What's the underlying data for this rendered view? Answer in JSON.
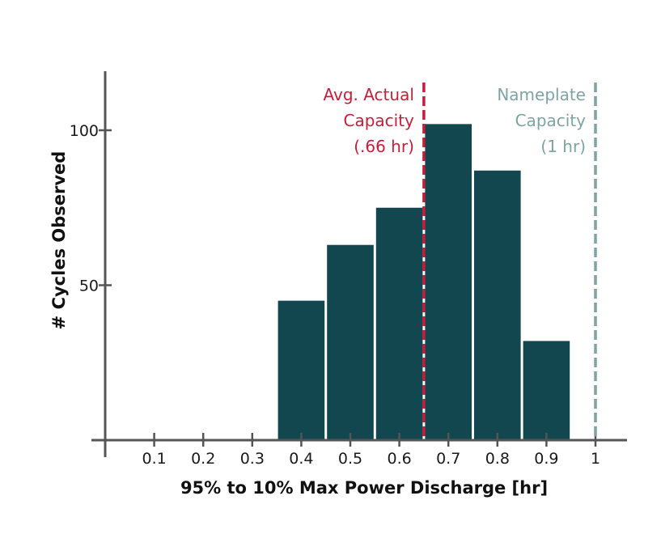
{
  "chart_data": {
    "type": "bar",
    "title": "",
    "xlabel": "95% to 10% Max Power Discharge [hr]",
    "ylabel": "# Cycles Observed",
    "xlim": [
      0,
      1.06
    ],
    "ylim": [
      0,
      100
    ],
    "x_ticks": [
      "0.1",
      "0.2",
      "0.3",
      "0.4",
      "0.5",
      "0.6",
      "0.7",
      "0.8",
      "0.9",
      "1"
    ],
    "y_ticks": [
      "50",
      "100"
    ],
    "bins": [
      {
        "x": 0.4,
        "value": 45
      },
      {
        "x": 0.5,
        "value": 63
      },
      {
        "x": 0.6,
        "value": 75
      },
      {
        "x": 0.7,
        "value": 102
      },
      {
        "x": 0.8,
        "value": 87
      },
      {
        "x": 0.9,
        "value": 32
      }
    ],
    "bin_width": 0.1,
    "bar_color": "#12474f",
    "grid": false,
    "annotations": [
      {
        "name": "actual",
        "x": 0.65,
        "color": "#c41e3a",
        "lines": [
          "Avg. Actual",
          "Capacity",
          "(.66 hr)"
        ]
      },
      {
        "name": "nameplate",
        "x": 1.0,
        "color": "#7fa3a3",
        "lines": [
          "Nameplate",
          "Capacity",
          "(1 hr)"
        ]
      }
    ]
  }
}
